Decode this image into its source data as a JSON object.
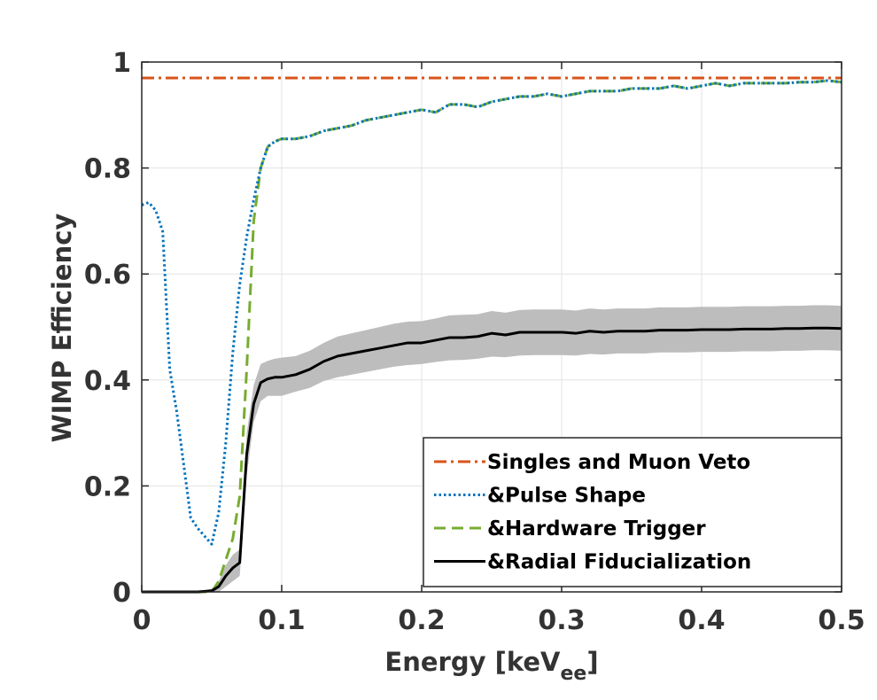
{
  "chart_data": {
    "type": "line",
    "xlabel": "Energy [keV",
    "xlabel_sub": "ee",
    "xlabel_close": "]",
    "ylabel": "WIMP Efficiency",
    "xlim": [
      0,
      0.5
    ],
    "ylim": [
      0,
      1
    ],
    "xticks": [
      0,
      0.1,
      0.2,
      0.3,
      0.4,
      0.5
    ],
    "xtick_labels": [
      "0",
      "0.1",
      "0.2",
      "0.3",
      "0.4",
      "0.5"
    ],
    "yticks": [
      0,
      0.2,
      0.4,
      0.6,
      0.8,
      1
    ],
    "ytick_labels": [
      "0",
      "0.2",
      "0.4",
      "0.6",
      "0.8",
      "1"
    ],
    "grid": true,
    "legend_position": "bottom-right",
    "series": [
      {
        "name": "Singles and Muon Veto",
        "color": "#d95319",
        "style": "dash-dot",
        "x": [
          0,
          0.5
        ],
        "y": [
          0.97,
          0.97
        ]
      },
      {
        "name": "&Pulse Shape",
        "color": "#0072bd",
        "style": "dotted",
        "x": [
          0,
          0.005,
          0.01,
          0.015,
          0.02,
          0.025,
          0.03,
          0.035,
          0.04,
          0.045,
          0.05,
          0.055,
          0.06,
          0.065,
          0.07,
          0.075,
          0.08,
          0.085,
          0.09,
          0.095,
          0.1,
          0.11,
          0.12,
          0.13,
          0.14,
          0.15,
          0.16,
          0.17,
          0.18,
          0.19,
          0.2,
          0.21,
          0.22,
          0.23,
          0.24,
          0.25,
          0.26,
          0.27,
          0.28,
          0.29,
          0.3,
          0.31,
          0.32,
          0.33,
          0.34,
          0.35,
          0.36,
          0.37,
          0.38,
          0.39,
          0.4,
          0.41,
          0.42,
          0.43,
          0.44,
          0.45,
          0.46,
          0.47,
          0.48,
          0.49,
          0.5
        ],
        "y": [
          0.73,
          0.735,
          0.72,
          0.68,
          0.42,
          0.34,
          0.24,
          0.14,
          0.12,
          0.105,
          0.09,
          0.15,
          0.28,
          0.45,
          0.58,
          0.67,
          0.74,
          0.8,
          0.84,
          0.85,
          0.855,
          0.855,
          0.86,
          0.87,
          0.875,
          0.88,
          0.89,
          0.895,
          0.9,
          0.905,
          0.91,
          0.905,
          0.92,
          0.92,
          0.915,
          0.925,
          0.93,
          0.935,
          0.935,
          0.94,
          0.935,
          0.94,
          0.945,
          0.945,
          0.945,
          0.95,
          0.95,
          0.95,
          0.955,
          0.95,
          0.955,
          0.96,
          0.955,
          0.96,
          0.96,
          0.96,
          0.96,
          0.962,
          0.962,
          0.965,
          0.962
        ]
      },
      {
        "name": "&Hardware Trigger",
        "color": "#77ac30",
        "style": "dashed",
        "x": [
          0,
          0.04,
          0.05,
          0.055,
          0.06,
          0.065,
          0.07,
          0.075,
          0.08,
          0.085,
          0.09,
          0.095,
          0.1,
          0.11,
          0.12,
          0.13,
          0.14,
          0.15,
          0.16,
          0.17,
          0.18,
          0.19,
          0.2,
          0.21,
          0.22,
          0.23,
          0.24,
          0.25,
          0.26,
          0.27,
          0.28,
          0.29,
          0.3,
          0.31,
          0.32,
          0.33,
          0.34,
          0.35,
          0.36,
          0.37,
          0.38,
          0.39,
          0.4,
          0.41,
          0.42,
          0.43,
          0.44,
          0.45,
          0.46,
          0.47,
          0.48,
          0.49,
          0.5
        ],
        "y": [
          0,
          0,
          0,
          0.02,
          0.06,
          0.1,
          0.18,
          0.42,
          0.7,
          0.8,
          0.84,
          0.85,
          0.855,
          0.855,
          0.86,
          0.87,
          0.875,
          0.88,
          0.89,
          0.895,
          0.9,
          0.905,
          0.91,
          0.905,
          0.92,
          0.92,
          0.915,
          0.925,
          0.93,
          0.935,
          0.935,
          0.94,
          0.935,
          0.94,
          0.945,
          0.945,
          0.945,
          0.95,
          0.95,
          0.95,
          0.955,
          0.95,
          0.955,
          0.96,
          0.955,
          0.96,
          0.96,
          0.96,
          0.96,
          0.962,
          0.962,
          0.965,
          0.962
        ]
      },
      {
        "name": "&Radial Fiducialization",
        "color": "#000000",
        "style": "solid",
        "band_color": "#bdbdbd",
        "x": [
          0,
          0.04,
          0.05,
          0.055,
          0.06,
          0.065,
          0.07,
          0.075,
          0.08,
          0.085,
          0.09,
          0.095,
          0.1,
          0.11,
          0.12,
          0.13,
          0.14,
          0.15,
          0.16,
          0.17,
          0.18,
          0.19,
          0.2,
          0.21,
          0.22,
          0.23,
          0.24,
          0.25,
          0.26,
          0.27,
          0.28,
          0.29,
          0.3,
          0.31,
          0.32,
          0.33,
          0.34,
          0.35,
          0.36,
          0.37,
          0.38,
          0.39,
          0.4,
          0.41,
          0.42,
          0.43,
          0.44,
          0.45,
          0.46,
          0.47,
          0.48,
          0.49,
          0.5
        ],
        "y": [
          0,
          0,
          0.002,
          0.01,
          0.03,
          0.045,
          0.055,
          0.26,
          0.355,
          0.395,
          0.402,
          0.405,
          0.405,
          0.41,
          0.42,
          0.435,
          0.445,
          0.45,
          0.455,
          0.46,
          0.465,
          0.47,
          0.47,
          0.475,
          0.48,
          0.48,
          0.482,
          0.488,
          0.485,
          0.49,
          0.49,
          0.49,
          0.49,
          0.488,
          0.492,
          0.49,
          0.492,
          0.492,
          0.492,
          0.494,
          0.494,
          0.494,
          0.495,
          0.495,
          0.495,
          0.496,
          0.496,
          0.496,
          0.497,
          0.497,
          0.498,
          0.498,
          0.497
        ],
        "y_lower": [
          0,
          0,
          0,
          0,
          0.01,
          0.02,
          0.03,
          0.22,
          0.32,
          0.36,
          0.37,
          0.37,
          0.37,
          0.378,
          0.385,
          0.398,
          0.405,
          0.41,
          0.415,
          0.42,
          0.425,
          0.428,
          0.43,
          0.434,
          0.437,
          0.438,
          0.44,
          0.444,
          0.443,
          0.446,
          0.447,
          0.447,
          0.447,
          0.446,
          0.449,
          0.448,
          0.45,
          0.45,
          0.45,
          0.452,
          0.452,
          0.452,
          0.453,
          0.453,
          0.453,
          0.454,
          0.454,
          0.454,
          0.455,
          0.455,
          0.456,
          0.456,
          0.455
        ],
        "y_upper": [
          0,
          0,
          0.006,
          0.02,
          0.05,
          0.07,
          0.08,
          0.3,
          0.39,
          0.43,
          0.436,
          0.44,
          0.442,
          0.445,
          0.455,
          0.47,
          0.482,
          0.488,
          0.494,
          0.5,
          0.506,
          0.51,
          0.511,
          0.516,
          0.522,
          0.523,
          0.524,
          0.53,
          0.527,
          0.532,
          0.533,
          0.533,
          0.533,
          0.531,
          0.535,
          0.533,
          0.535,
          0.535,
          0.535,
          0.537,
          0.537,
          0.537,
          0.538,
          0.538,
          0.538,
          0.539,
          0.539,
          0.539,
          0.54,
          0.54,
          0.541,
          0.541,
          0.54
        ]
      }
    ]
  }
}
